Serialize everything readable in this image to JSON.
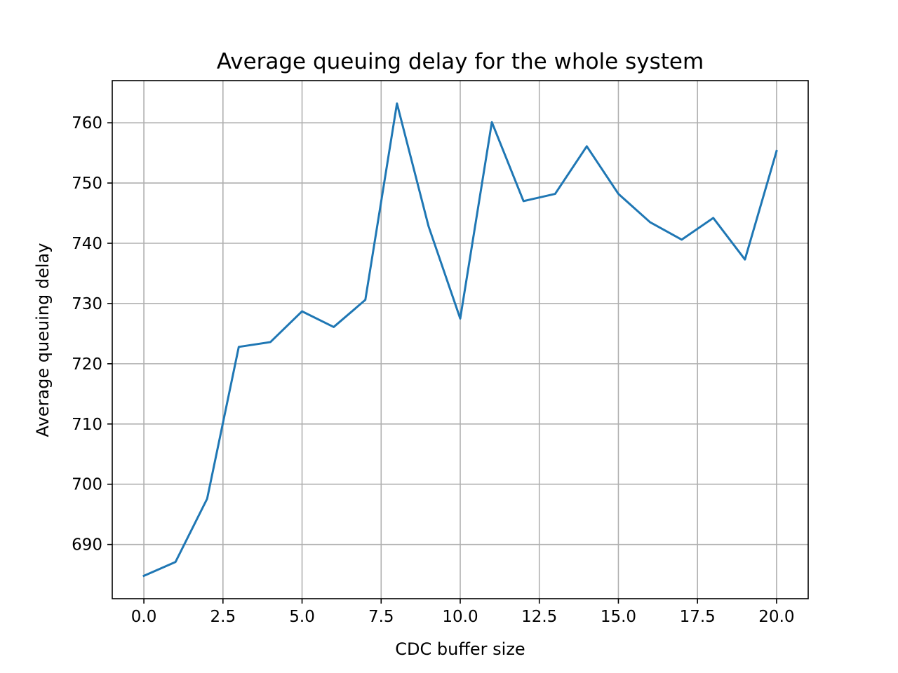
{
  "chart_data": {
    "type": "line",
    "title": "Average queuing delay for the whole system",
    "xlabel": "CDC buffer size",
    "ylabel": "Average queuing delay",
    "xlim": [
      -1.0,
      21.0
    ],
    "ylim": [
      681.0,
      767.0
    ],
    "xticks": [
      0.0,
      2.5,
      5.0,
      7.5,
      10.0,
      12.5,
      15.0,
      17.5,
      20.0
    ],
    "xtick_labels": [
      "0.0",
      "2.5",
      "5.0",
      "7.5",
      "10.0",
      "12.5",
      "15.0",
      "17.5",
      "20.0"
    ],
    "yticks": [
      690,
      700,
      710,
      720,
      730,
      740,
      750,
      760
    ],
    "ytick_labels": [
      "690",
      "700",
      "710",
      "720",
      "730",
      "740",
      "750",
      "760"
    ],
    "grid": true,
    "series": [
      {
        "color": "#1f77b4",
        "x": [
          0,
          1,
          2,
          3,
          4,
          5,
          6,
          7,
          8,
          9,
          10,
          11,
          12,
          13,
          14,
          15,
          16,
          17,
          18,
          19,
          20
        ],
        "y": [
          684.8,
          687.1,
          697.6,
          722.8,
          723.6,
          728.7,
          726.1,
          730.6,
          763.2,
          742.8,
          727.5,
          760.1,
          747.0,
          748.2,
          756.1,
          748.2,
          743.5,
          740.6,
          744.2,
          737.3,
          755.3
        ]
      }
    ]
  }
}
